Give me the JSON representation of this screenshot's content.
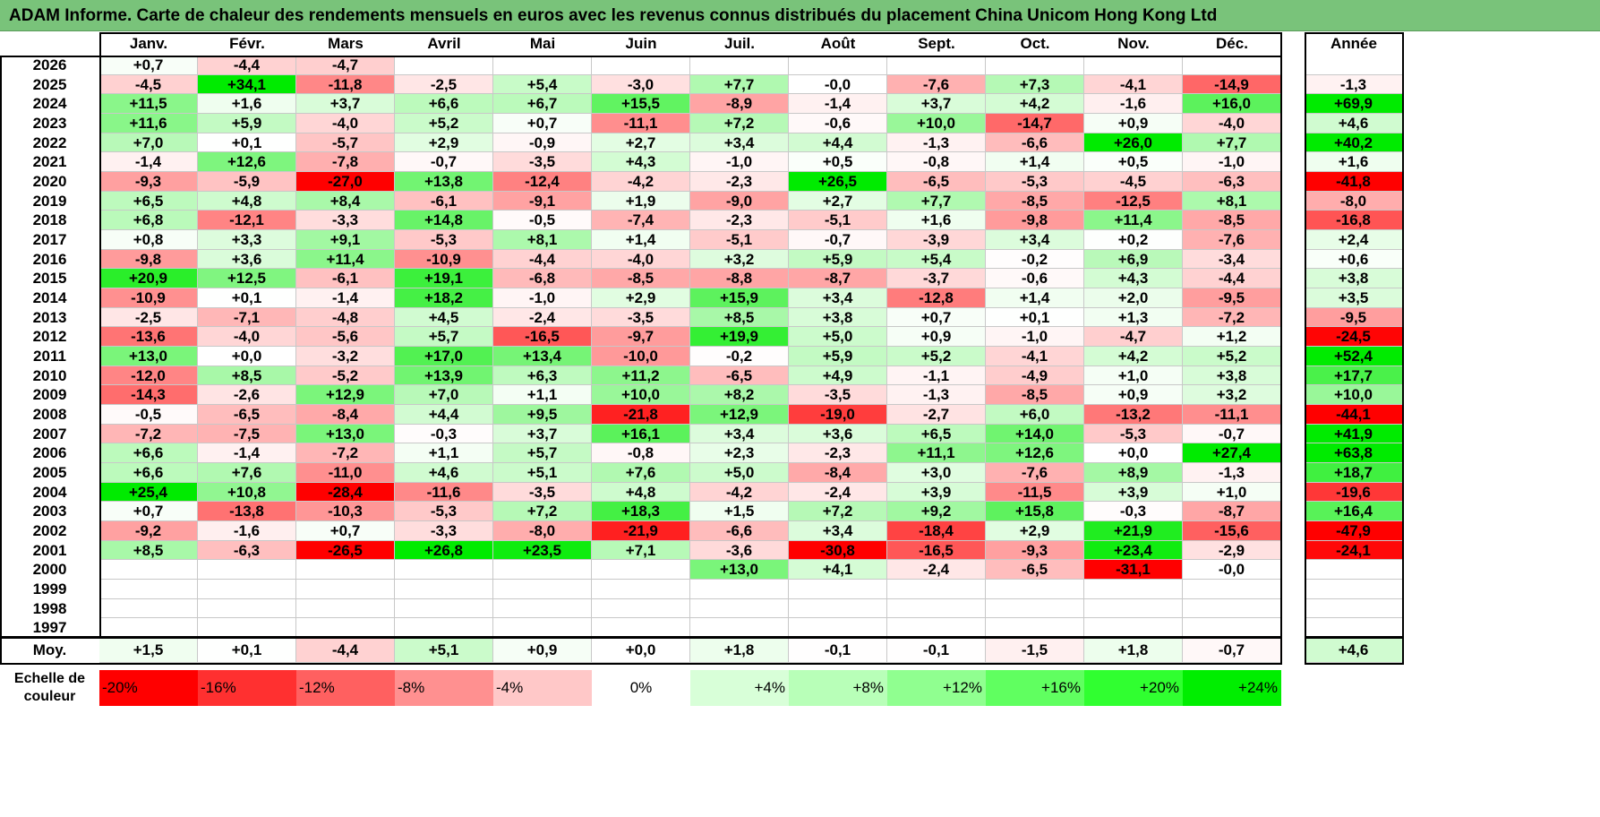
{
  "title": "ADAM Informe. Carte de chaleur des rendements mensuels en euros avec les revenus connus distribués du placement China Unicom Hong Kong Ltd",
  "chart_data": {
    "type": "heatmap",
    "months": [
      "Janv.",
      "Févr.",
      "Mars",
      "Avril",
      "Mai",
      "Juin",
      "Juil.",
      "Août",
      "Sept.",
      "Oct.",
      "Nov.",
      "Déc."
    ],
    "year_header": "Année",
    "rows": [
      {
        "year": "2026",
        "values": [
          "+0,7",
          "-4,4",
          "-4,7",
          "",
          "",
          "",
          "",
          "",
          "",
          "",
          "",
          ""
        ],
        "annual": ""
      },
      {
        "year": "2025",
        "values": [
          "-4,5",
          "+34,1",
          "-11,8",
          "-2,5",
          "+5,4",
          "-3,0",
          "+7,7",
          "-0,0",
          "-7,6",
          "+7,3",
          "-4,1",
          "-14,9"
        ],
        "annual": "-1,3"
      },
      {
        "year": "2024",
        "values": [
          "+11,5",
          "+1,6",
          "+3,7",
          "+6,6",
          "+6,7",
          "+15,5",
          "-8,9",
          "-1,4",
          "+3,7",
          "+4,2",
          "-1,6",
          "+16,0"
        ],
        "annual": "+69,9"
      },
      {
        "year": "2023",
        "values": [
          "+11,6",
          "+5,9",
          "-4,0",
          "+5,2",
          "+0,7",
          "-11,1",
          "+7,2",
          "-0,6",
          "+10,0",
          "-14,7",
          "+0,9",
          "-4,0"
        ],
        "annual": "+4,6"
      },
      {
        "year": "2022",
        "values": [
          "+7,0",
          "+0,1",
          "-5,7",
          "+2,9",
          "-0,9",
          "+2,7",
          "+3,4",
          "+4,4",
          "-1,3",
          "-6,6",
          "+26,0",
          "+7,7"
        ],
        "annual": "+40,2"
      },
      {
        "year": "2021",
        "values": [
          "-1,4",
          "+12,6",
          "-7,8",
          "-0,7",
          "-3,5",
          "+4,3",
          "-1,0",
          "+0,5",
          "-0,8",
          "+1,4",
          "+0,5",
          "-1,0"
        ],
        "annual": "+1,6"
      },
      {
        "year": "2020",
        "values": [
          "-9,3",
          "-5,9",
          "-27,0",
          "+13,8",
          "-12,4",
          "-4,2",
          "-2,3",
          "+26,5",
          "-6,5",
          "-5,3",
          "-4,5",
          "-6,3"
        ],
        "annual": "-41,8"
      },
      {
        "year": "2019",
        "values": [
          "+6,5",
          "+4,8",
          "+8,4",
          "-6,1",
          "-9,1",
          "+1,9",
          "-9,0",
          "+2,7",
          "+7,7",
          "-8,5",
          "-12,5",
          "+8,1"
        ],
        "annual": "-8,0"
      },
      {
        "year": "2018",
        "values": [
          "+6,8",
          "-12,1",
          "-3,3",
          "+14,8",
          "-0,5",
          "-7,4",
          "-2,3",
          "-5,1",
          "+1,6",
          "-9,8",
          "+11,4",
          "-8,5"
        ],
        "annual": "-16,8"
      },
      {
        "year": "2017",
        "values": [
          "+0,8",
          "+3,3",
          "+9,1",
          "-5,3",
          "+8,1",
          "+1,4",
          "-5,1",
          "-0,7",
          "-3,9",
          "+3,4",
          "+0,2",
          "-7,6"
        ],
        "annual": "+2,4"
      },
      {
        "year": "2016",
        "values": [
          "-9,8",
          "+3,6",
          "+11,4",
          "-10,9",
          "-4,4",
          "-4,0",
          "+3,2",
          "+5,9",
          "+5,4",
          "-0,2",
          "+6,9",
          "-3,4"
        ],
        "annual": "+0,6"
      },
      {
        "year": "2015",
        "values": [
          "+20,9",
          "+12,5",
          "-6,1",
          "+19,1",
          "-6,8",
          "-8,5",
          "-8,8",
          "-8,7",
          "-3,7",
          "-0,6",
          "+4,3",
          "-4,4"
        ],
        "annual": "+3,8"
      },
      {
        "year": "2014",
        "values": [
          "-10,9",
          "+0,1",
          "-1,4",
          "+18,2",
          "-1,0",
          "+2,9",
          "+15,9",
          "+3,4",
          "-12,8",
          "+1,4",
          "+2,0",
          "-9,5"
        ],
        "annual": "+3,5"
      },
      {
        "year": "2013",
        "values": [
          "-2,5",
          "-7,1",
          "-4,8",
          "+4,5",
          "-2,4",
          "-3,5",
          "+8,5",
          "+3,8",
          "+0,7",
          "+0,1",
          "+1,3",
          "-7,2"
        ],
        "annual": "-9,5"
      },
      {
        "year": "2012",
        "values": [
          "-13,6",
          "-4,0",
          "-5,6",
          "+5,7",
          "-16,5",
          "-9,7",
          "+19,9",
          "+5,0",
          "+0,9",
          "-1,0",
          "-4,7",
          "+1,2"
        ],
        "annual": "-24,5"
      },
      {
        "year": "2011",
        "values": [
          "+13,0",
          "+0,0",
          "-3,2",
          "+17,0",
          "+13,4",
          "-10,0",
          "-0,2",
          "+5,9",
          "+5,2",
          "-4,1",
          "+4,2",
          "+5,2"
        ],
        "annual": "+52,4"
      },
      {
        "year": "2010",
        "values": [
          "-12,0",
          "+8,5",
          "-5,2",
          "+13,9",
          "+6,3",
          "+11,2",
          "-6,5",
          "+4,9",
          "-1,1",
          "-4,9",
          "+1,0",
          "+3,8"
        ],
        "annual": "+17,7"
      },
      {
        "year": "2009",
        "values": [
          "-14,3",
          "-2,6",
          "+12,9",
          "+7,0",
          "+1,1",
          "+10,0",
          "+8,2",
          "-3,5",
          "-1,3",
          "-8,5",
          "+0,9",
          "+3,2"
        ],
        "annual": "+10,0"
      },
      {
        "year": "2008",
        "values": [
          "-0,5",
          "-6,5",
          "-8,4",
          "+4,4",
          "+9,5",
          "-21,8",
          "+12,9",
          "-19,0",
          "-2,7",
          "+6,0",
          "-13,2",
          "-11,1"
        ],
        "annual": "-44,1"
      },
      {
        "year": "2007",
        "values": [
          "-7,2",
          "-7,5",
          "+13,0",
          "-0,3",
          "+3,7",
          "+16,1",
          "+3,4",
          "+3,6",
          "+6,5",
          "+14,0",
          "-5,3",
          "-0,7"
        ],
        "annual": "+41,9"
      },
      {
        "year": "2006",
        "values": [
          "+6,6",
          "-1,4",
          "-7,2",
          "+1,1",
          "+5,7",
          "-0,8",
          "+2,3",
          "-2,3",
          "+11,1",
          "+12,6",
          "+0,0",
          "+27,4"
        ],
        "annual": "+63,8"
      },
      {
        "year": "2005",
        "values": [
          "+6,6",
          "+7,6",
          "-11,0",
          "+4,6",
          "+5,1",
          "+7,6",
          "+5,0",
          "-8,4",
          "+3,0",
          "-7,6",
          "+8,9",
          "-1,3"
        ],
        "annual": "+18,7"
      },
      {
        "year": "2004",
        "values": [
          "+25,4",
          "+10,8",
          "-28,4",
          "-11,6",
          "-3,5",
          "+4,8",
          "-4,2",
          "-2,4",
          "+3,9",
          "-11,5",
          "+3,9",
          "+1,0"
        ],
        "annual": "-19,6"
      },
      {
        "year": "2003",
        "values": [
          "+0,7",
          "-13,8",
          "-10,3",
          "-5,3",
          "+7,2",
          "+18,3",
          "+1,5",
          "+7,2",
          "+9,2",
          "+15,8",
          "-0,3",
          "-8,7"
        ],
        "annual": "+16,4"
      },
      {
        "year": "2002",
        "values": [
          "-9,2",
          "-1,6",
          "+0,7",
          "-3,3",
          "-8,0",
          "-21,9",
          "-6,6",
          "+3,4",
          "-18,4",
          "+2,9",
          "+21,9",
          "-15,6"
        ],
        "annual": "-47,9"
      },
      {
        "year": "2001",
        "values": [
          "+8,5",
          "-6,3",
          "-26,5",
          "+26,8",
          "+23,5",
          "+7,1",
          "-3,6",
          "-30,8",
          "-16,5",
          "-9,3",
          "+23,4",
          "-2,9"
        ],
        "annual": "-24,1"
      },
      {
        "year": "2000",
        "values": [
          "",
          "",
          "",
          "",
          "",
          "",
          "+13,0",
          "+4,1",
          "-2,4",
          "-6,5",
          "-31,1",
          "-0,0"
        ],
        "annual": ""
      },
      {
        "year": "1999",
        "values": [
          "",
          "",
          "",
          "",
          "",
          "",
          "",
          "",
          "",
          "",
          "",
          ""
        ],
        "annual": ""
      },
      {
        "year": "1998",
        "values": [
          "",
          "",
          "",
          "",
          "",
          "",
          "",
          "",
          "",
          "",
          "",
          ""
        ],
        "annual": ""
      },
      {
        "year": "1997",
        "values": [
          "",
          "",
          "",
          "",
          "",
          "",
          "",
          "",
          "",
          "",
          "",
          ""
        ],
        "annual": ""
      }
    ],
    "average": {
      "label": "Moy.",
      "values": [
        "+1,5",
        "+0,1",
        "-4,4",
        "+5,1",
        "+0,9",
        "+0,0",
        "+1,8",
        "-0,1",
        "-0,1",
        "-1,5",
        "+1,8",
        "-0,7"
      ],
      "annual": "+4,6"
    },
    "scale": {
      "label": "Echelle de couleur",
      "steps": [
        "-20%",
        "-16%",
        "-12%",
        "-8%",
        "-4%",
        "0%",
        "+4%",
        "+8%",
        "+12%",
        "+16%",
        "+20%",
        "+24%"
      ],
      "colors": [
        "#ff0000",
        "#ff3030",
        "#ff6060",
        "#ff9090",
        "#ffc8c8",
        "#ffffff",
        "#d8ffd8",
        "#b8ffb8",
        "#90ff90",
        "#60ff60",
        "#30ff30",
        "#00ee00"
      ]
    }
  }
}
